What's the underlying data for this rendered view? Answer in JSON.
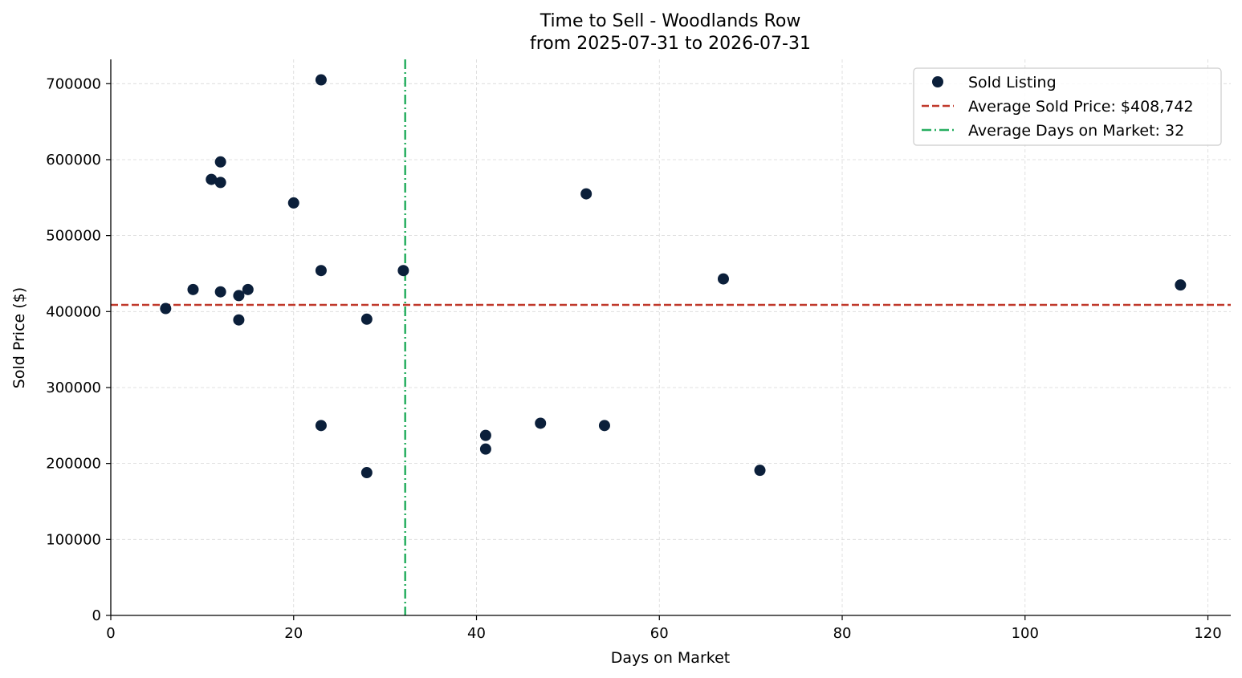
{
  "chart_data": {
    "type": "scatter",
    "title": "Time to Sell - Woodlands Row",
    "subtitle": "from 2025-07-31 to 2026-07-31",
    "xlabel": "Days on Market",
    "ylabel": "Sold Price ($)",
    "xlim": [
      0,
      122.5
    ],
    "ylim": [
      0,
      732000
    ],
    "x_ticks": [
      0,
      20,
      40,
      60,
      80,
      100,
      120
    ],
    "y_ticks": [
      0,
      100000,
      200000,
      300000,
      400000,
      500000,
      600000,
      700000
    ],
    "grid": true,
    "legend_position": "top-right",
    "series": [
      {
        "name": "Sold Listing",
        "color": "#0b1f3a",
        "points": [
          {
            "x": 6,
            "y": 404000
          },
          {
            "x": 9,
            "y": 429000
          },
          {
            "x": 11,
            "y": 574000
          },
          {
            "x": 12,
            "y": 597000
          },
          {
            "x": 12,
            "y": 570000
          },
          {
            "x": 12,
            "y": 426000
          },
          {
            "x": 14,
            "y": 421000
          },
          {
            "x": 14,
            "y": 389000
          },
          {
            "x": 15,
            "y": 429000
          },
          {
            "x": 20,
            "y": 543000
          },
          {
            "x": 23,
            "y": 705000
          },
          {
            "x": 23,
            "y": 454000
          },
          {
            "x": 23,
            "y": 250000
          },
          {
            "x": 28,
            "y": 390000
          },
          {
            "x": 28,
            "y": 188000
          },
          {
            "x": 32,
            "y": 454000
          },
          {
            "x": 41,
            "y": 237000
          },
          {
            "x": 41,
            "y": 219000
          },
          {
            "x": 47,
            "y": 253000
          },
          {
            "x": 52,
            "y": 555000
          },
          {
            "x": 54,
            "y": 250000
          },
          {
            "x": 67,
            "y": 443000
          },
          {
            "x": 71,
            "y": 191000
          },
          {
            "x": 117,
            "y": 435000
          }
        ]
      }
    ],
    "reference_lines": [
      {
        "name": "Average Sold Price: $408,742",
        "orientation": "horizontal",
        "value": 408742,
        "color": "#c0392b",
        "style": "dashed"
      },
      {
        "name": "Average Days on Market: 32",
        "orientation": "vertical",
        "value": 32.2,
        "color": "#27ae60",
        "style": "dashdot"
      }
    ]
  }
}
